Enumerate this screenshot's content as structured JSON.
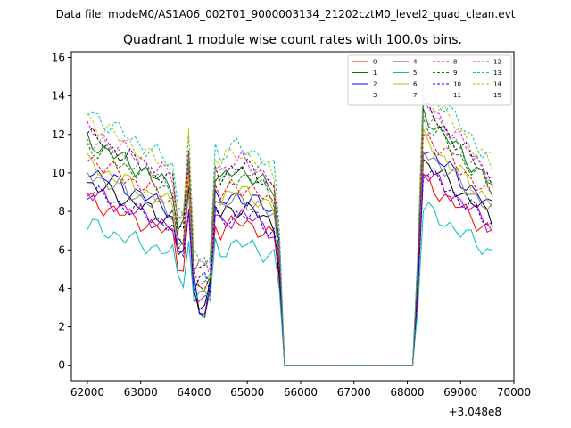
{
  "chart_data": {
    "type": "line",
    "suptitle": "Data file: modeM0/AS1A06_002T01_9000003134_21202cztM0_level2_quad_clean.evt",
    "title": "Quadrant 1 module wise count rates with 100.0s bins.",
    "xlabel": "",
    "ylabel": "",
    "x_offset_label": "+3.048e8",
    "xlim": [
      61700,
      70000
    ],
    "ylim": [
      -0.8,
      16.3
    ],
    "xticks": [
      62000,
      63000,
      64000,
      65000,
      66000,
      67000,
      68000,
      69000,
      70000
    ],
    "xtick_labels": [
      "62000",
      "63000",
      "64000",
      "65000",
      "66000",
      "67000",
      "68000",
      "69000",
      "70000"
    ],
    "yticks": [
      0,
      2,
      4,
      6,
      8,
      10,
      12,
      14,
      16
    ],
    "ytick_labels": [
      "0",
      "2",
      "4",
      "6",
      "8",
      "10",
      "12",
      "14",
      "16"
    ],
    "legend_position": "top-right",
    "series": [
      {
        "name": "0",
        "color": "#ff0000",
        "dash": "solid",
        "base": 8.6
      },
      {
        "name": "1",
        "color": "#008000",
        "dash": "solid",
        "base": 11.7
      },
      {
        "name": "2",
        "color": "#0000ff",
        "dash": "solid",
        "base": 10.2
      },
      {
        "name": "3",
        "color": "#000000",
        "dash": "solid",
        "base": 9.5
      },
      {
        "name": "4",
        "color": "#bf00bf",
        "dash": "solid",
        "base": 9.0
      },
      {
        "name": "5",
        "color": "#00bfbf",
        "dash": "solid",
        "base": 7.3
      },
      {
        "name": "6",
        "color": "#bfbf00",
        "dash": "solid",
        "base": 10.5
      },
      {
        "name": "7",
        "color": "#808080",
        "dash": "solid",
        "base": 10.0
      },
      {
        "name": "8",
        "color": "#ff0000",
        "dash": "dashed",
        "base": 10.8
      },
      {
        "name": "9",
        "color": "#008000",
        "dash": "dashed",
        "base": 11.4
      },
      {
        "name": "10",
        "color": "#0000ff",
        "dash": "dashed",
        "base": 9.1
      },
      {
        "name": "11",
        "color": "#000000",
        "dash": "dashed",
        "base": 12.0
      },
      {
        "name": "12",
        "color": "#ff00ff",
        "dash": "dashed",
        "base": 12.3
      },
      {
        "name": "13",
        "color": "#00bfbf",
        "dash": "dashed",
        "base": 13.2
      },
      {
        "name": "14",
        "color": "#bfbf00",
        "dash": "dashed",
        "base": 12.8
      },
      {
        "name": "15",
        "color": "#808080",
        "dash": "dashed",
        "base": 11.9
      }
    ]
  }
}
